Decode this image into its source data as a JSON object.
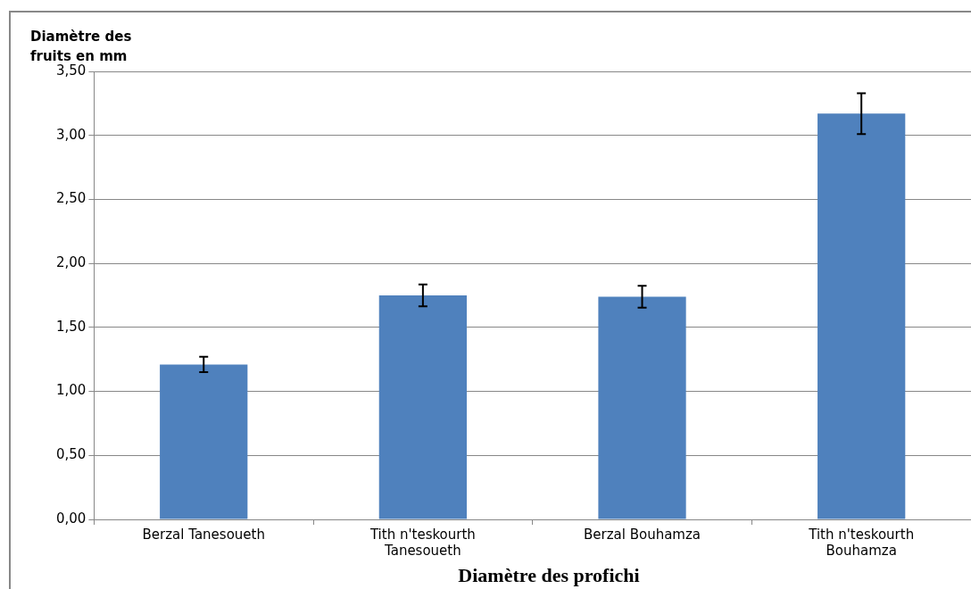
{
  "chart_data": {
    "type": "bar",
    "ylabel": "Diamètre des fruits en mm",
    "xlabel": "Diamètre des profichi",
    "categories": [
      "Berzal Tanesoueth",
      "Tith n'teskourth Tanesoueth",
      "Berzal Bouhamza",
      "Tith n'teskourth Bouhamza"
    ],
    "values": [
      1.21,
      1.75,
      1.74,
      3.17
    ],
    "errors": [
      0.06,
      0.085,
      0.085,
      0.16
    ],
    "color": "#4f81bd",
    "ylim": [
      0,
      3.5
    ],
    "yticks": [
      {
        "value": 0,
        "label": "0,00"
      },
      {
        "value": 0.5,
        "label": "0,50"
      },
      {
        "value": 1,
        "label": "1,00"
      },
      {
        "value": 1.5,
        "label": "1,50"
      },
      {
        "value": 2,
        "label": "2,00"
      },
      {
        "value": 2.5,
        "label": "2,50"
      },
      {
        "value": 3,
        "label": "3,00"
      },
      {
        "value": 3.5,
        "label": "3,50"
      }
    ],
    "grid": "y"
  }
}
